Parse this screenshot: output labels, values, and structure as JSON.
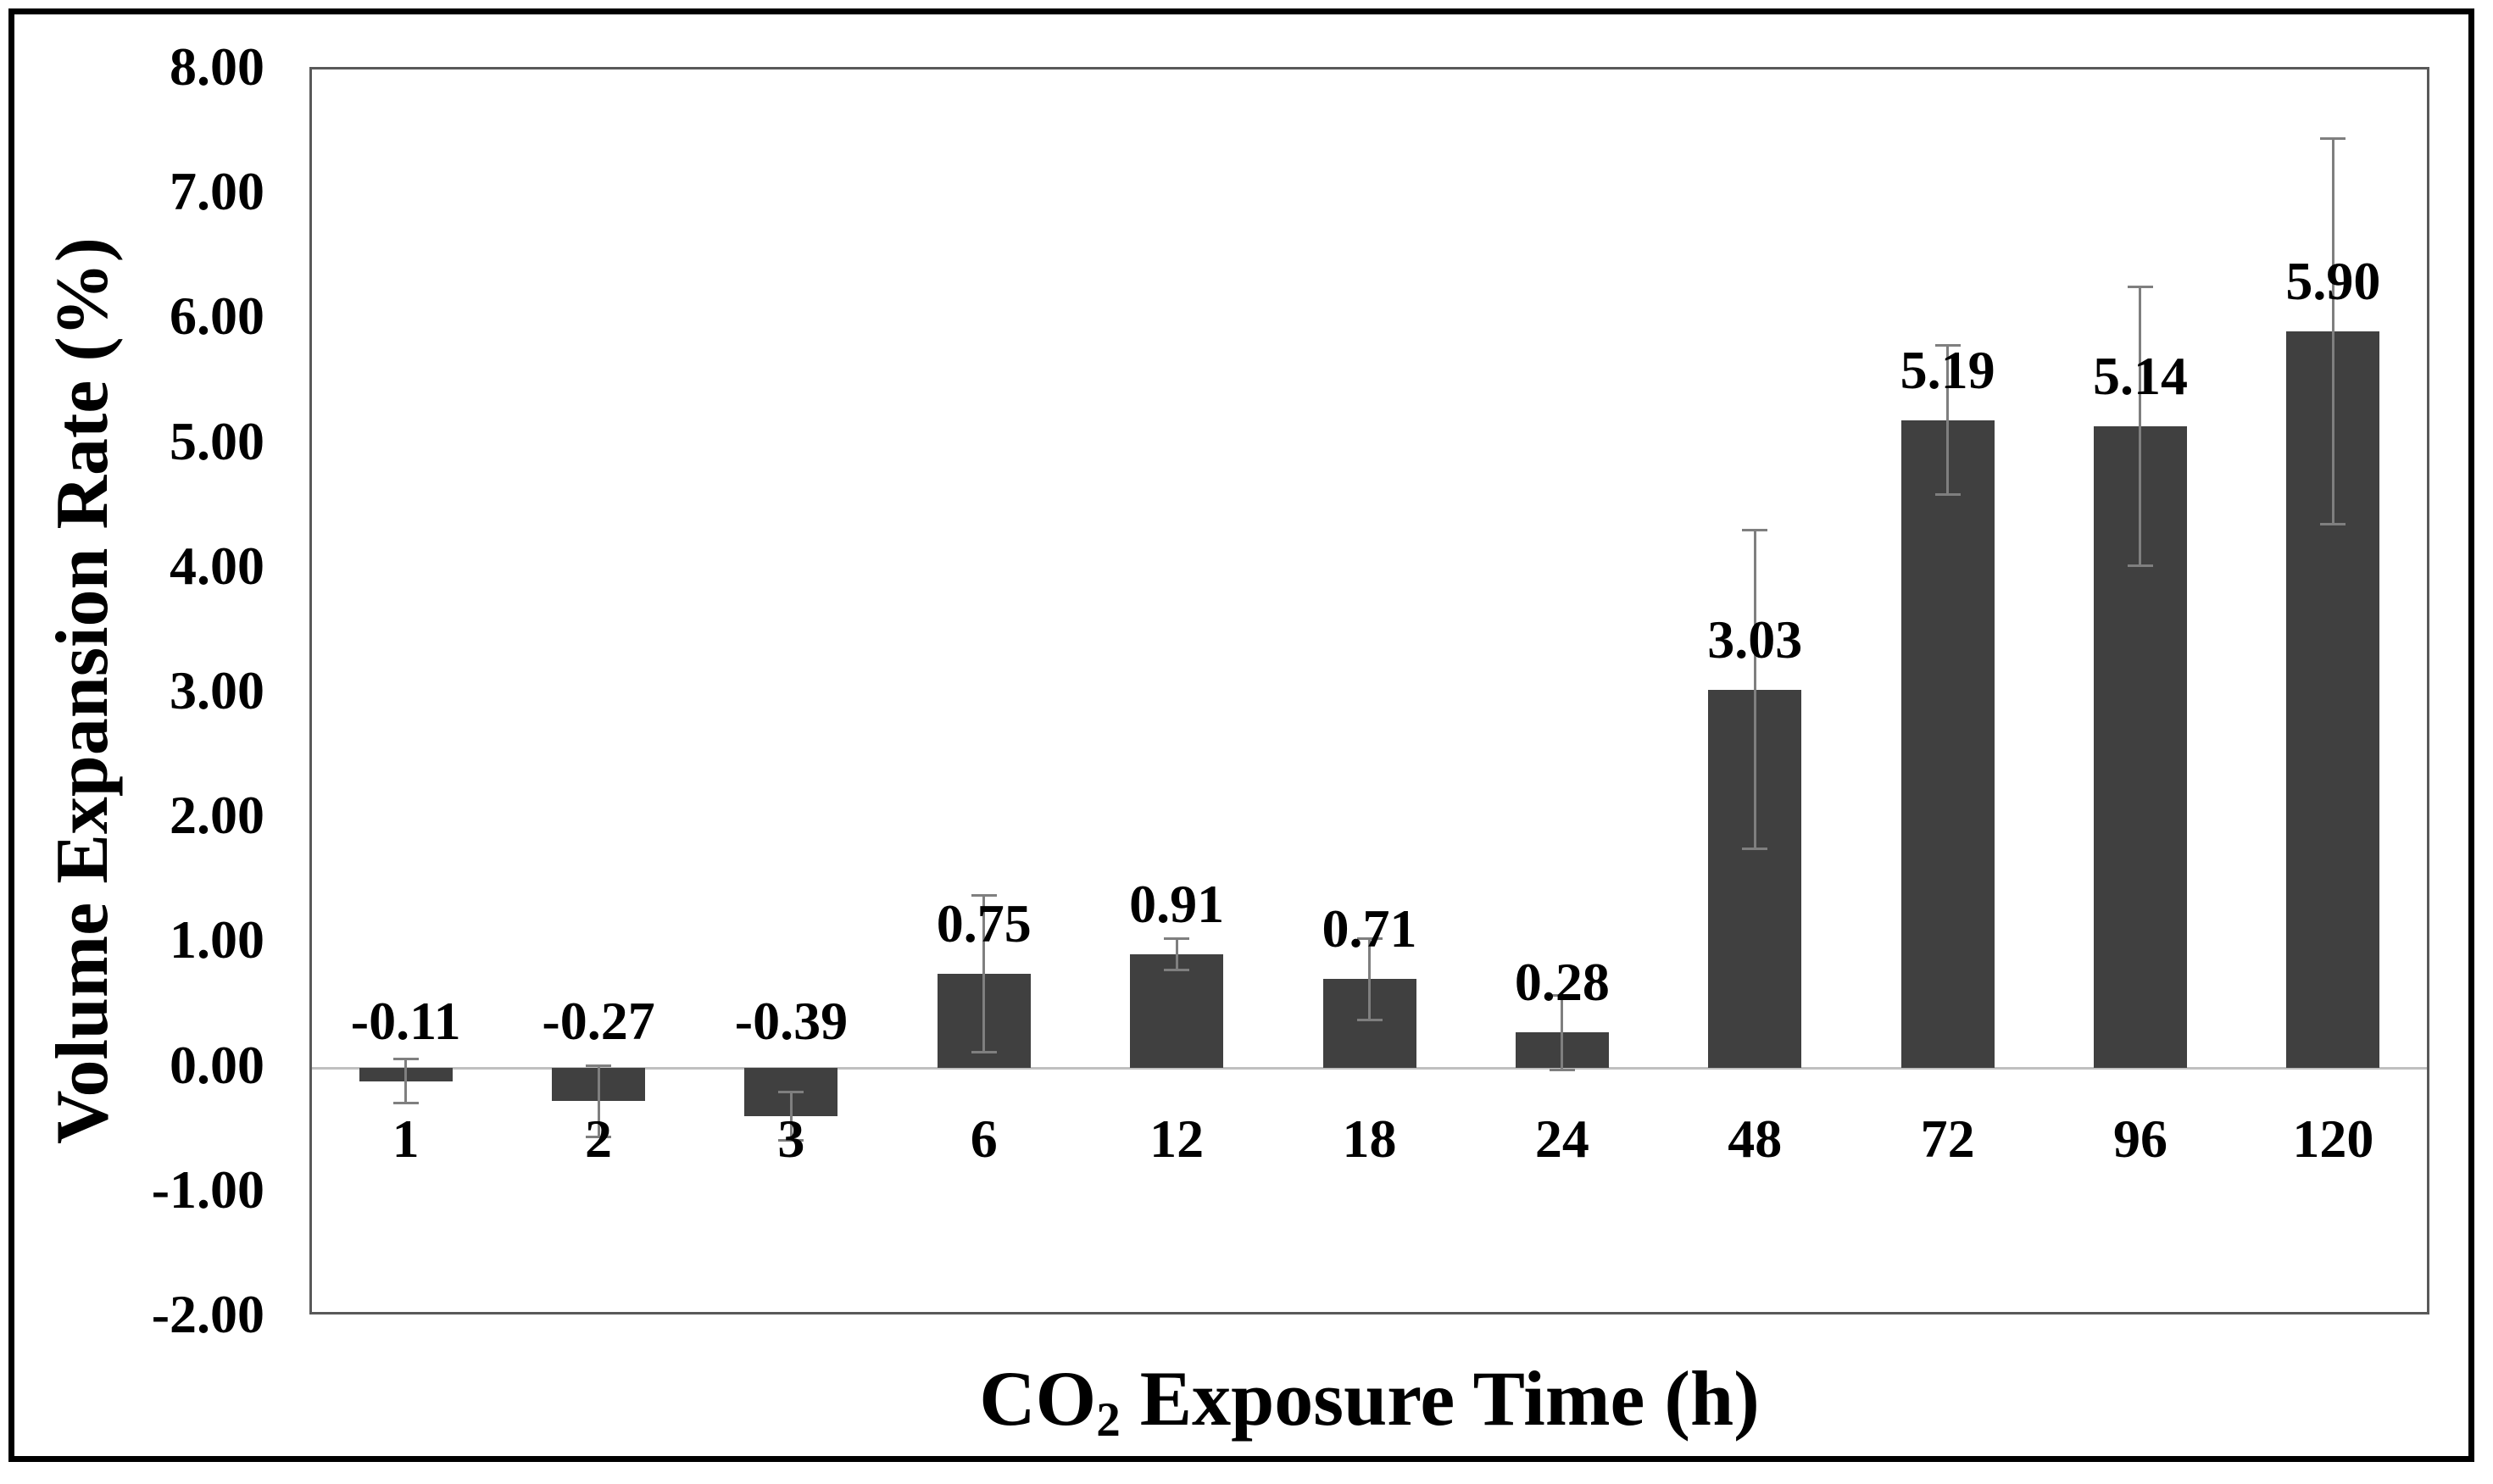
{
  "chart_data": {
    "type": "bar",
    "title": "",
    "ylabel": "Volume Expansion Rate (%)",
    "xlabel": "CO2 Exposure Time (h)",
    "xlabel_parts": {
      "pre": "CO",
      "sub": "2",
      "post": " Exposure Time (h)"
    },
    "categories": [
      "1",
      "2",
      "3",
      "6",
      "12",
      "18",
      "24",
      "48",
      "72",
      "96",
      "120"
    ],
    "values": [
      -0.11,
      -0.27,
      -0.39,
      0.75,
      0.91,
      0.71,
      0.28,
      3.03,
      5.19,
      5.14,
      5.9
    ],
    "errors": [
      0.18,
      0.29,
      0.2,
      0.63,
      0.13,
      0.33,
      0.3,
      1.28,
      0.6,
      1.12,
      1.55
    ],
    "data_labels": [
      "-0.11",
      "-0.27",
      "-0.39",
      "0.75",
      "0.91",
      "0.71",
      "0.28",
      "3.03",
      "5.19",
      "5.14",
      "5.90"
    ],
    "y_ticks": [
      "8.00",
      "7.00",
      "6.00",
      "5.00",
      "4.00",
      "3.00",
      "2.00",
      "1.00",
      "0.00",
      "-1.00",
      "-2.00"
    ],
    "ylim": [
      -2,
      8
    ],
    "grid": "off",
    "legend": "none",
    "bar_color": "#404040",
    "error_bar_color": "#7f7f7f",
    "zero_line_color": "#c0c0c0",
    "frame_color": "#595959",
    "outer_border_color": "#000000"
  }
}
